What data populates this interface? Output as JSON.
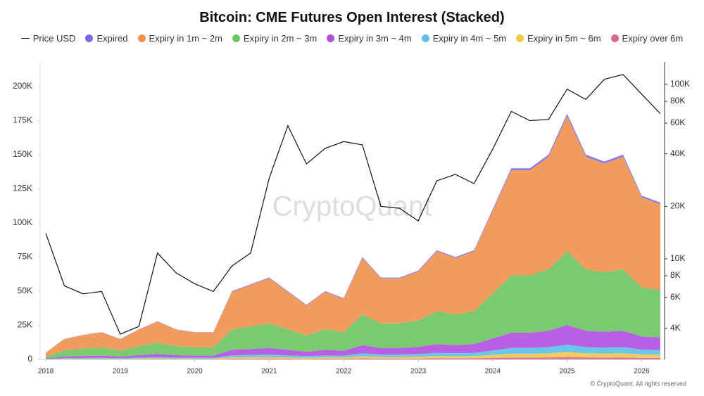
{
  "chart_data": {
    "type": "area",
    "stacked": true,
    "title": "Bitcoin: CME Futures Open Interest (Stacked)",
    "watermark": "CryptoQuant",
    "footer": "© CryptoQuant. All rights reserved",
    "x": [
      2018,
      2018.25,
      2018.5,
      2018.75,
      2019,
      2019.25,
      2019.5,
      2019.75,
      2020,
      2020.25,
      2020.5,
      2020.75,
      2021,
      2021.25,
      2021.5,
      2021.75,
      2022,
      2022.25,
      2022.5,
      2022.75,
      2023,
      2023.25,
      2023.5,
      2023.75,
      2024,
      2024.25,
      2024.5,
      2024.75,
      2025,
      2025.25,
      2025.5,
      2025.75,
      2026,
      2026.25
    ],
    "xlim": [
      2017.924,
      2026.27
    ],
    "xticks": [
      2018,
      2019,
      2020,
      2021,
      2022,
      2023,
      2024,
      2025,
      2026
    ],
    "ylim": [
      0,
      218000
    ],
    "yticks": [
      {
        "value": 0,
        "label": "0"
      },
      {
        "value": 25000,
        "label": "25K"
      },
      {
        "value": 50000,
        "label": "50K"
      },
      {
        "value": 75000,
        "label": "75K"
      },
      {
        "value": 100000,
        "label": "100K"
      },
      {
        "value": 125000,
        "label": "125K"
      },
      {
        "value": 150000,
        "label": "150K"
      },
      {
        "value": 175000,
        "label": "175K"
      },
      {
        "value": 200000,
        "label": "200K"
      }
    ],
    "y2lim": [
      2650,
      134600
    ],
    "y2scale": "log",
    "y2ticks": [
      {
        "value": 4000,
        "label": "4K"
      },
      {
        "value": 6000,
        "label": "6K"
      },
      {
        "value": 8000,
        "label": "8K"
      },
      {
        "value": 10000,
        "label": "10K"
      },
      {
        "value": 20000,
        "label": "20K"
      },
      {
        "value": 40000,
        "label": "40K"
      },
      {
        "value": 60000,
        "label": "60K"
      },
      {
        "value": 80000,
        "label": "80K"
      },
      {
        "value": 100000,
        "label": "100K"
      }
    ],
    "series": [
      {
        "name": "Price USD",
        "color": "#111111",
        "axis": "y2",
        "type": "line",
        "values": [
          14000,
          7000,
          6300,
          6500,
          3700,
          4100,
          10800,
          8300,
          7200,
          6500,
          9100,
          10800,
          29000,
          58000,
          35000,
          43000,
          47000,
          45000,
          20000,
          19500,
          16500,
          28000,
          30500,
          27000,
          42500,
          70000,
          62000,
          63000,
          94000,
          82000,
          107000,
          114000,
          88000,
          68000
        ]
      },
      {
        "name": "Expired",
        "color": "#7b68ee",
        "values": [
          50,
          150,
          180,
          200,
          150,
          220,
          280,
          220,
          200,
          200,
          500,
          550,
          600,
          500,
          400,
          500,
          450,
          750,
          600,
          600,
          650,
          800,
          750,
          800,
          1100,
          1400,
          1400,
          1500,
          1800,
          1500,
          1450,
          1500,
          1200,
          1150
        ]
      },
      {
        "name": "Expiry in 1m ~ 2m",
        "color": "#f0914a",
        "values": [
          2750,
          8250,
          9900,
          11000,
          8250,
          12100,
          15400,
          12100,
          11000,
          11000,
          27500,
          30250,
          33000,
          27500,
          22000,
          27500,
          24750,
          41250,
          33000,
          33000,
          35750,
          44000,
          41250,
          44000,
          60500,
          77000,
          77000,
          82500,
          99000,
          82500,
          79750,
          82500,
          66000,
          63250
        ]
      },
      {
        "name": "Expiry in 2m ~ 3m",
        "color": "#6cc464",
        "values": [
          1500,
          4500,
          5400,
          6000,
          4500,
          6600,
          8400,
          6600,
          6000,
          6000,
          15000,
          16500,
          18000,
          15000,
          12000,
          15000,
          13500,
          22500,
          18000,
          18000,
          19500,
          24000,
          22500,
          24000,
          33000,
          42000,
          42000,
          45000,
          54000,
          45000,
          43500,
          45000,
          36000,
          34500
        ]
      },
      {
        "name": "Expiry in 3m ~ 4m",
        "color": "#b04ee0",
        "values": [
          400,
          1200,
          1440,
          1600,
          1200,
          1760,
          2240,
          1760,
          1600,
          1600,
          4000,
          4400,
          4800,
          4000,
          3200,
          4000,
          3600,
          6000,
          4800,
          4800,
          5200,
          6400,
          6000,
          6400,
          8800,
          11200,
          11200,
          12000,
          14400,
          12000,
          11600,
          12000,
          9600,
          9200
        ]
      },
      {
        "name": "Expiry in 4m ~ 5m",
        "color": "#5bc0e8",
        "values": [
          150,
          450,
          540,
          600,
          450,
          660,
          840,
          660,
          600,
          600,
          1500,
          1650,
          1800,
          1500,
          1200,
          1500,
          1350,
          2250,
          1800,
          1800,
          1950,
          2400,
          2250,
          2400,
          3300,
          4200,
          4200,
          4500,
          5400,
          4500,
          4350,
          4500,
          3600,
          3450
        ]
      },
      {
        "name": "Expiry in 5m ~ 6m",
        "color": "#f0c94a",
        "values": [
          100,
          300,
          360,
          400,
          300,
          440,
          560,
          440,
          400,
          400,
          1000,
          1100,
          1200,
          1000,
          800,
          1000,
          900,
          1500,
          1200,
          1200,
          1300,
          1600,
          1500,
          1600,
          2200,
          2800,
          2800,
          3000,
          3600,
          3000,
          2900,
          3000,
          2400,
          2300
        ]
      },
      {
        "name": "Expiry over 6m",
        "color": "#d9688e",
        "values": [
          50,
          150,
          180,
          200,
          150,
          220,
          280,
          220,
          200,
          200,
          500,
          550,
          600,
          500,
          400,
          500,
          450,
          750,
          600,
          600,
          650,
          800,
          750,
          800,
          1100,
          1400,
          1400,
          1500,
          1800,
          1500,
          1450,
          1500,
          1200,
          1150
        ]
      }
    ]
  }
}
